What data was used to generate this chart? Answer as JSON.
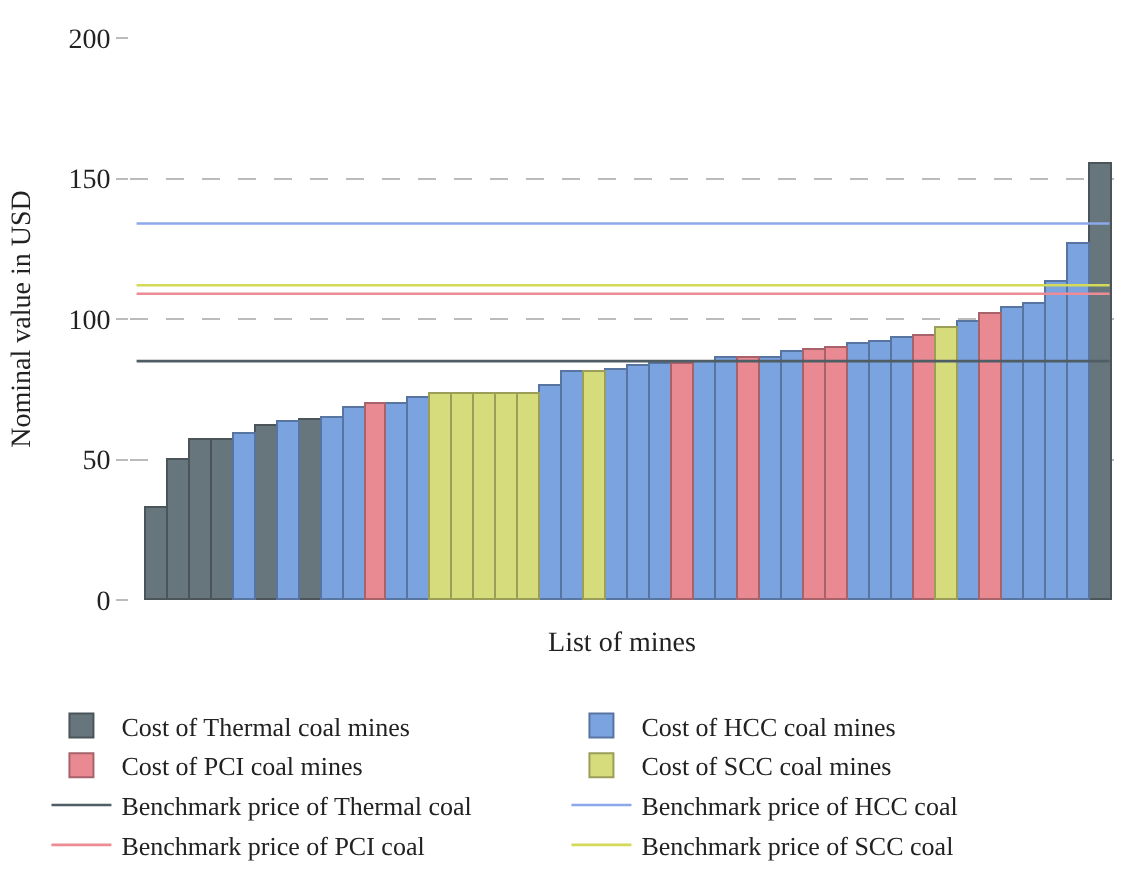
{
  "chart_data": {
    "type": "bar",
    "xlabel": "List of mines",
    "ylabel": "Nominal value in USD",
    "categories": [
      null,
      null,
      null,
      null,
      null,
      null,
      null,
      null,
      null,
      null,
      null,
      null,
      null,
      null,
      null,
      null,
      null,
      null,
      null,
      null,
      null,
      null,
      null,
      null,
      null,
      null,
      null,
      null,
      null,
      null,
      null,
      null,
      null,
      null,
      null,
      null,
      null,
      null,
      null,
      null,
      null,
      null,
      null,
      null
    ],
    "series": [
      {
        "name": "Cost of Thermal coal mines",
        "color": "#67767c",
        "values": [
          33,
          50,
          57,
          57,
          null,
          62,
          null,
          64,
          null,
          null,
          null,
          null,
          null,
          null,
          null,
          null,
          null,
          null,
          null,
          null,
          null,
          null,
          null,
          null,
          null,
          null,
          null,
          null,
          null,
          null,
          null,
          null,
          null,
          null,
          null,
          null,
          null,
          null,
          null,
          null,
          null,
          null,
          null,
          155
        ]
      },
      {
        "name": "Cost of HCC coal mines",
        "color": "#7ba3e0",
        "values": [
          null,
          null,
          null,
          null,
          59,
          null,
          63,
          null,
          65,
          68,
          null,
          70,
          72,
          null,
          null,
          null,
          null,
          null,
          76,
          81,
          null,
          82,
          83,
          84,
          null,
          85,
          86,
          null,
          86,
          88,
          null,
          null,
          91,
          92,
          93,
          null,
          null,
          99,
          null,
          104,
          105,
          113,
          127,
          null
        ]
      },
      {
        "name": "Cost of PCI coal mines",
        "color": "#e98a93",
        "values": [
          null,
          null,
          null,
          null,
          null,
          null,
          null,
          null,
          null,
          null,
          70,
          null,
          null,
          null,
          null,
          null,
          null,
          null,
          null,
          null,
          null,
          null,
          null,
          null,
          84,
          null,
          null,
          86,
          null,
          null,
          89,
          90,
          null,
          null,
          null,
          94,
          null,
          null,
          101.5,
          null,
          null,
          null,
          null,
          null
        ]
      },
      {
        "name": "Cost of SCC coal mines",
        "color": "#d6dc7c",
        "values": [
          null,
          null,
          null,
          null,
          null,
          null,
          null,
          null,
          null,
          null,
          null,
          null,
          null,
          73,
          73,
          73,
          73,
          73,
          null,
          null,
          81,
          null,
          null,
          null,
          null,
          null,
          null,
          null,
          null,
          null,
          null,
          null,
          null,
          null,
          null,
          null,
          97,
          null,
          null,
          null,
          null,
          null,
          null,
          null
        ]
      }
    ],
    "ref_lines": [
      {
        "axis": "y",
        "value": 85,
        "label": "Benchmark price of Thermal coal",
        "color": "#4f5e64"
      },
      {
        "axis": "y",
        "value": 134,
        "label": "Benchmark price of HCC coal",
        "color": "#8aa8ea"
      },
      {
        "axis": "y",
        "value": 109,
        "label": "Benchmark price of PCI coal",
        "color": "#ee8c96"
      },
      {
        "axis": "y",
        "value": 112,
        "label": "Benchmark price of SCC coal",
        "color": "#d2da58"
      }
    ],
    "ylim": [
      0,
      200
    ],
    "yticks": [
      0,
      50,
      100,
      150,
      200
    ],
    "grid": "y",
    "legend": "bottom"
  }
}
